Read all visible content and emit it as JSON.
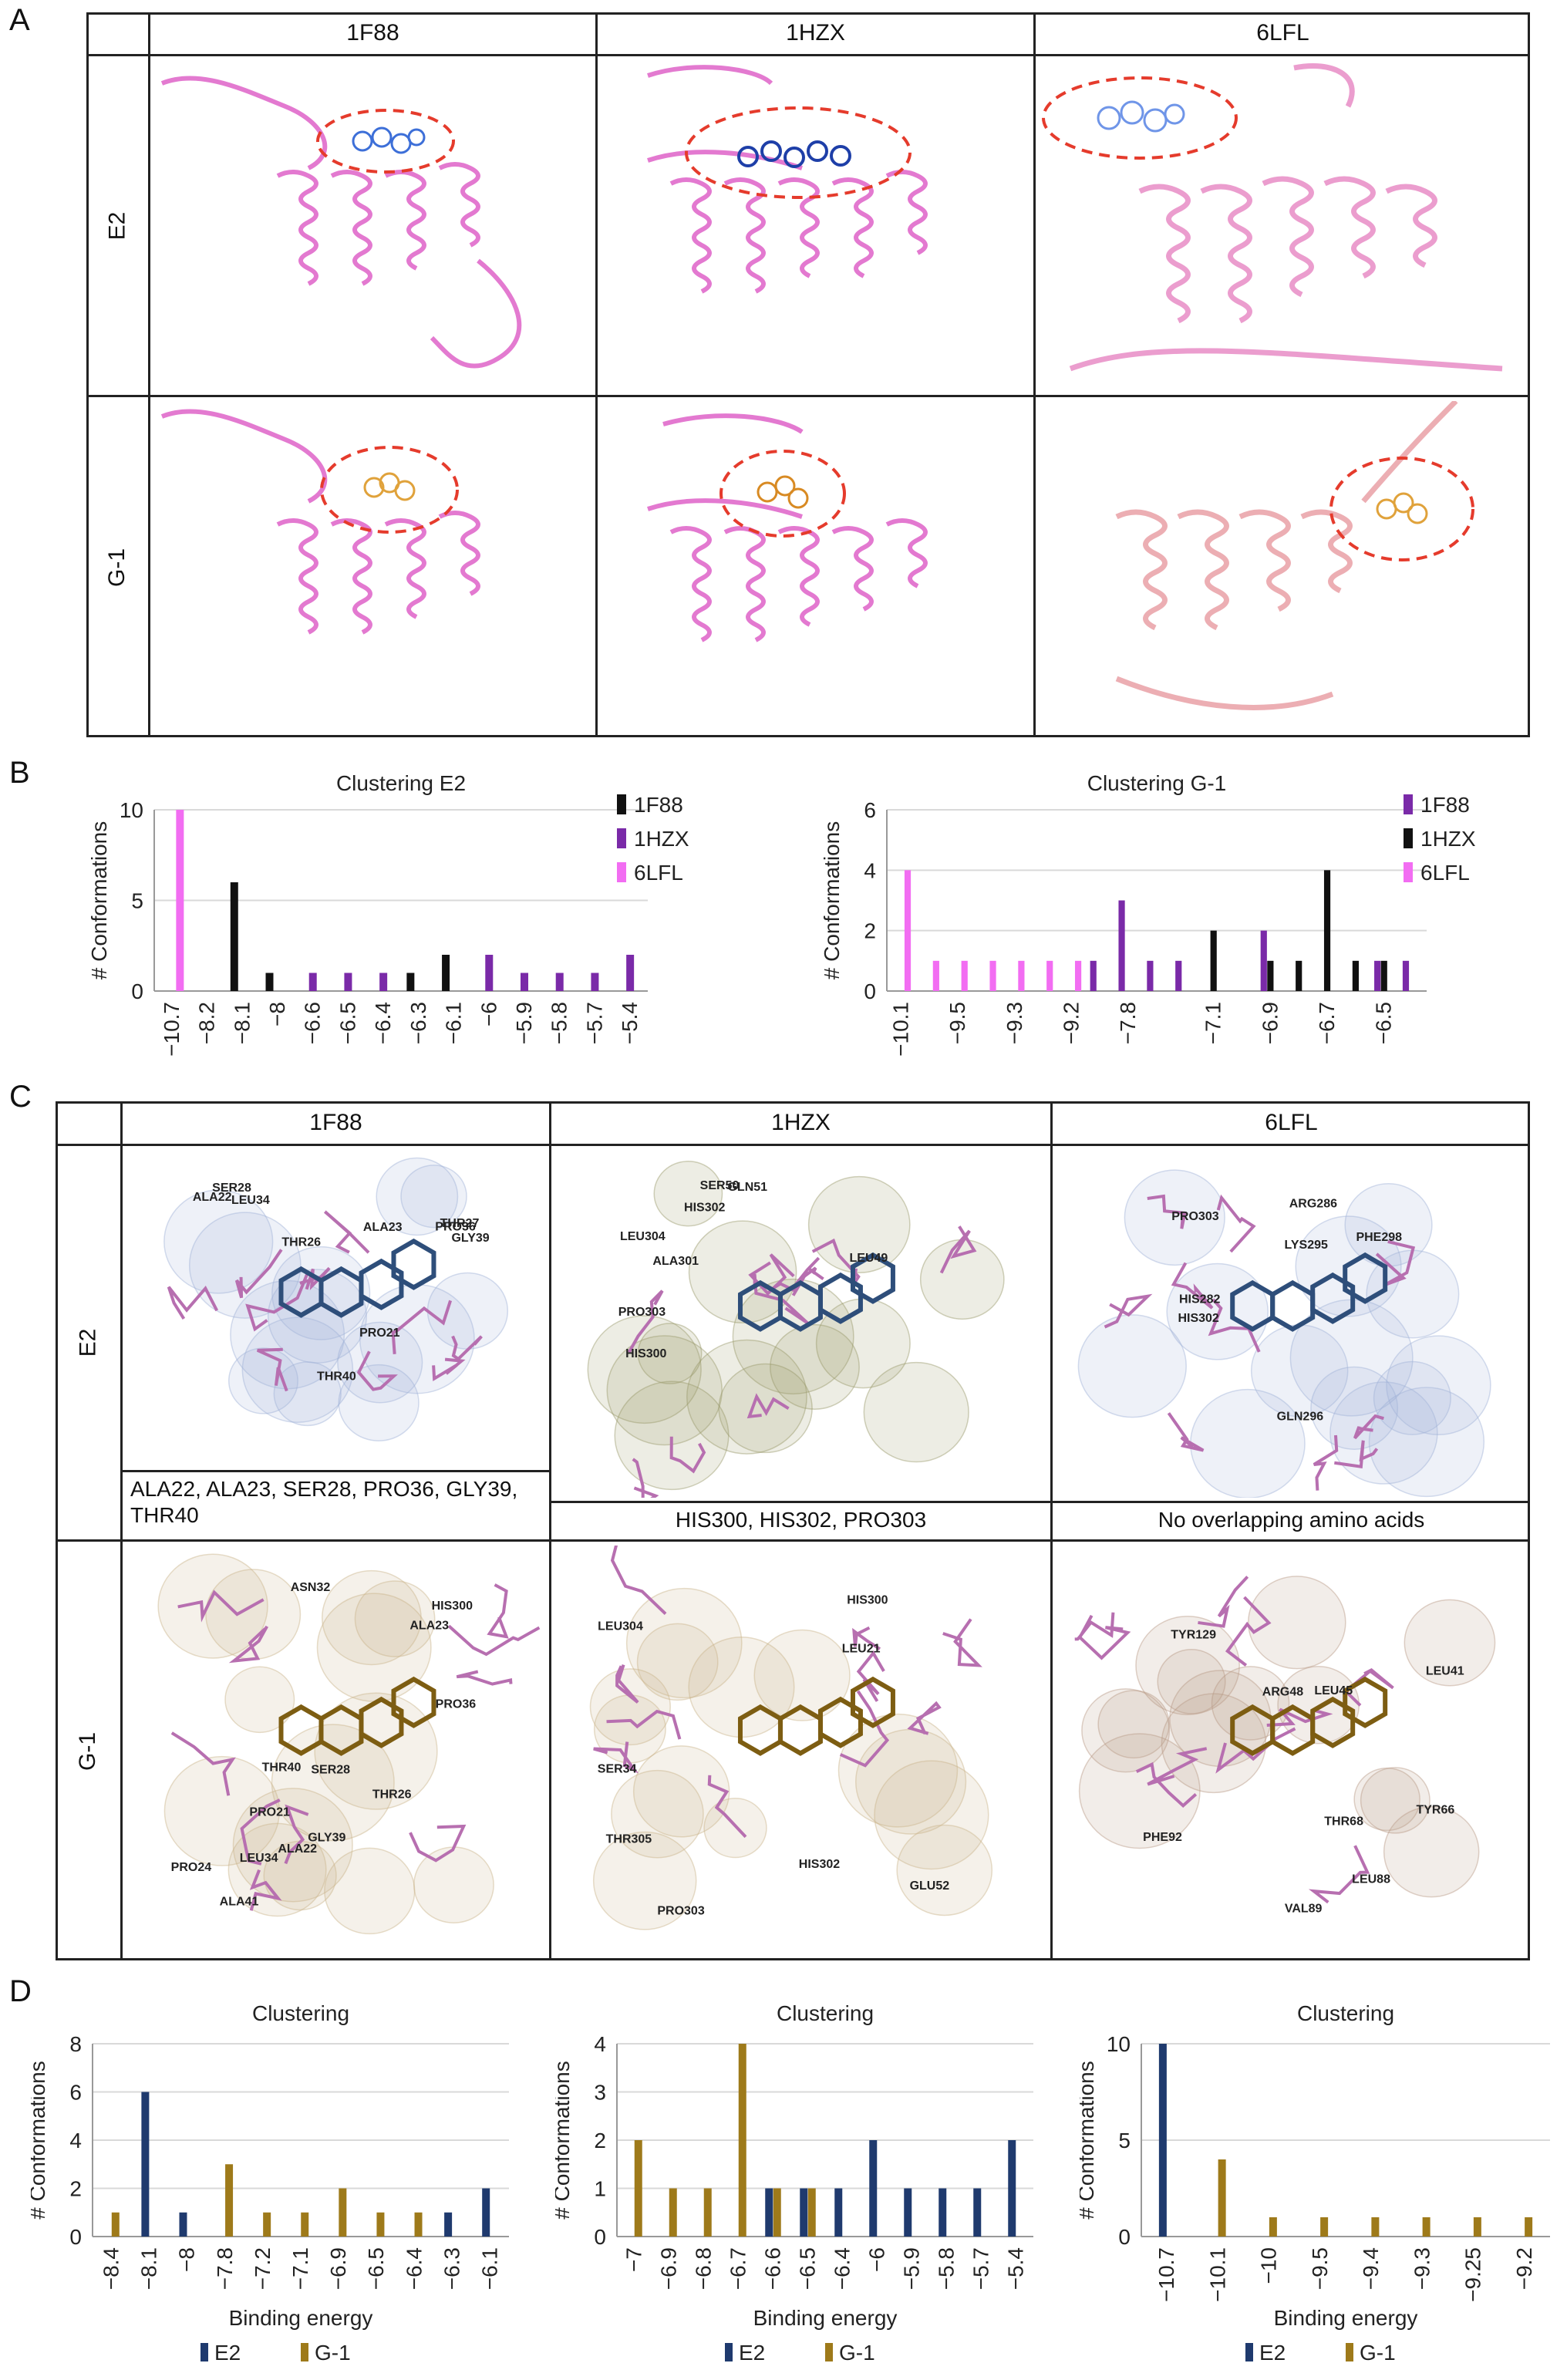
{
  "panels": {
    "A": {
      "letter": "A",
      "columns": [
        "1F88",
        "1HZX",
        "6LFL"
      ],
      "rows": [
        "E2",
        "G-1"
      ]
    },
    "B": {
      "letter": "B"
    },
    "C": {
      "letter": "C",
      "columns": [
        "1F88",
        "1HZX",
        "6LFL"
      ],
      "rows": [
        "E2",
        "G-1"
      ],
      "overlap_captions": [
        "ALA22, ALA23, SER28, PRO36, GLY39, THR40",
        "HIS300, HIS302, PRO303",
        "No overlapping amino acids"
      ],
      "residue_labels_e2": [
        [
          "ALA22",
          "ALA23",
          "THR40",
          "THR26",
          "THR27",
          "PRO21",
          "PRO36",
          "SER28",
          "LEU34",
          "GLY39"
        ],
        [
          "HIS300",
          "LEU49",
          "GLN51",
          "HIS302",
          "PRO303",
          "ALA301",
          "SER50",
          "LEU304"
        ],
        [
          "LYS295",
          "PHE298",
          "GLN296",
          "ARG286",
          "PRO303",
          "HIS282",
          "HIS302"
        ]
      ],
      "residue_labels_g1": [
        [
          "PRO24",
          "ALA23",
          "THR26",
          "HIS300",
          "ALA22",
          "THR40",
          "ALA41",
          "SER28",
          "PRO21",
          "LEU34",
          "GLY39",
          "PRO36",
          "ASN32"
        ],
        [
          "SER34",
          "GLU52",
          "PRO303",
          "LEU21",
          "HIS302",
          "LEU304",
          "HIS300",
          "THR305"
        ],
        [
          "LEU41",
          "TYR66",
          "LEU45",
          "ARG48",
          "LEU88",
          "THR68",
          "TYR129",
          "VAL89",
          "PHE92"
        ]
      ]
    },
    "D": {
      "letter": "D"
    }
  },
  "colors": {
    "e2_ligand": "#2e4e7a",
    "g1_ligand": "#7d5d12",
    "protein_ribbon": "#e06bcb",
    "residue_stick": "#b76fb0",
    "dashed_circle": "#e53b2c",
    "black_series": "#111111",
    "purple_series": "#7a2aa8",
    "pink_series": "#f26df2",
    "navy_series": "#1f3a6e",
    "gold_series": "#9e7a1a"
  },
  "chart_data": [
    {
      "id": "B-left",
      "type": "bar",
      "title": "Clustering E2",
      "xlabel": "Binding energy",
      "ylabel": "# Conformations",
      "ylim": [
        0,
        10
      ],
      "yticks": [
        0,
        5,
        10
      ],
      "categories": [
        "−10.7",
        "−8.2",
        "−8.1",
        "−8",
        "−6.6",
        "−6.5",
        "−6.4",
        "−6.3",
        "−6.1",
        "−6",
        "−5.9",
        "−5.8",
        "−5.7",
        "−5.4"
      ],
      "series": [
        {
          "name": "1F88",
          "color": "#111111",
          "values": [
            0,
            0,
            6,
            1,
            0,
            0,
            0,
            1,
            2,
            0,
            0,
            0,
            0,
            0
          ]
        },
        {
          "name": "1HZX",
          "color": "#7a2aa8",
          "values": [
            0,
            0,
            0,
            0,
            1,
            1,
            1,
            0,
            0,
            2,
            1,
            1,
            1,
            2
          ]
        },
        {
          "name": "6LFL",
          "color": "#f26df2",
          "values": [
            10,
            0,
            0,
            0,
            0,
            0,
            0,
            0,
            0,
            0,
            0,
            0,
            0,
            0
          ]
        }
      ],
      "legend": "right"
    },
    {
      "id": "B-right",
      "type": "bar",
      "title": "Clustering G-1",
      "xlabel": "Binding energy",
      "ylabel": "# Conformations",
      "ylim": [
        0,
        6
      ],
      "yticks": [
        0,
        2,
        4,
        6
      ],
      "categories": [
        "−10.1",
        "−9.6",
        "−9.5",
        "−9.4",
        "−9.3",
        "−9.25",
        "−9.2",
        "−7.9",
        "−7.8",
        "−7.6",
        "−7.2",
        "−7.1",
        "−7",
        "−6.9",
        "−6.8",
        "−6.7",
        "−6.6",
        "−6.5",
        "−6.4"
      ],
      "xtick_labels_shown": [
        "−10.1",
        "",
        "−9.5",
        "",
        "−9.3",
        "",
        "−9.2",
        "",
        "−7.8",
        "",
        "",
        "−7.1",
        "",
        "−6.9",
        "",
        "−6.7",
        "",
        "−6.5",
        ""
      ],
      "series": [
        {
          "name": "1F88",
          "color": "#7a2aa8",
          "values": [
            0,
            0,
            0,
            0,
            0,
            0,
            0,
            1,
            3,
            1,
            1,
            0,
            0,
            2,
            0,
            0,
            0,
            1,
            1
          ]
        },
        {
          "name": "1HZX",
          "color": "#111111",
          "values": [
            0,
            0,
            0,
            0,
            0,
            0,
            0,
            0,
            0,
            0,
            0,
            2,
            0,
            1,
            1,
            4,
            1,
            1,
            0
          ]
        },
        {
          "name": "6LFL",
          "color": "#f26df2",
          "values": [
            4,
            1,
            1,
            1,
            1,
            1,
            1,
            0,
            0,
            0,
            0,
            0,
            0,
            0,
            0,
            0,
            0,
            0,
            0
          ]
        }
      ],
      "legend": "right"
    },
    {
      "id": "D-left",
      "type": "bar",
      "title": "Clustering",
      "xlabel": "Binding energy",
      "ylabel": "# Conformations",
      "ylim": [
        0,
        8
      ],
      "yticks": [
        0,
        2,
        4,
        6,
        8
      ],
      "categories": [
        "−8.4",
        "−8.1",
        "−8",
        "−7.8",
        "−7.2",
        "−7.1",
        "−6.9",
        "−6.5",
        "−6.4",
        "−6.3",
        "−6.1"
      ],
      "series": [
        {
          "name": "E2",
          "color": "#1f3a6e",
          "values": [
            0,
            6,
            1,
            0,
            0,
            0,
            0,
            0,
            0,
            1,
            2
          ]
        },
        {
          "name": "G-1",
          "color": "#9e7a1a",
          "values": [
            1,
            0,
            0,
            3,
            1,
            1,
            2,
            1,
            1,
            0,
            0
          ]
        }
      ],
      "legend": "bottom"
    },
    {
      "id": "D-middle",
      "type": "bar",
      "title": "Clustering",
      "xlabel": "Binding energy",
      "ylabel": "# Conformations",
      "ylim": [
        0,
        4
      ],
      "yticks": [
        0,
        1,
        2,
        3,
        4
      ],
      "categories": [
        "−7",
        "−6.9",
        "−6.8",
        "−6.7",
        "−6.6",
        "−6.5",
        "−6.4",
        "−6",
        "−5.9",
        "−5.8",
        "−5.7",
        "−5.4"
      ],
      "series": [
        {
          "name": "E2",
          "color": "#1f3a6e",
          "values": [
            0,
            0,
            0,
            0,
            1,
            1,
            1,
            2,
            1,
            1,
            1,
            2
          ]
        },
        {
          "name": "G-1",
          "color": "#9e7a1a",
          "values": [
            2,
            1,
            1,
            4,
            1,
            1,
            0,
            0,
            0,
            0,
            0,
            0
          ]
        }
      ],
      "legend": "bottom"
    },
    {
      "id": "D-right",
      "type": "bar",
      "title": "Clustering",
      "xlabel": "Binding energy",
      "ylabel": "# Conformations",
      "ylim": [
        0,
        10
      ],
      "yticks": [
        0,
        5,
        10
      ],
      "categories": [
        "−10.7",
        "−10.1",
        "−10",
        "−9.5",
        "−9.4",
        "−9.3",
        "−9.25",
        "−9.2"
      ],
      "series": [
        {
          "name": "E2",
          "color": "#1f3a6e",
          "values": [
            10,
            0,
            0,
            0,
            0,
            0,
            0,
            0
          ]
        },
        {
          "name": "G-1",
          "color": "#9e7a1a",
          "values": [
            0,
            4,
            1,
            1,
            1,
            1,
            1,
            1
          ]
        }
      ],
      "legend": "bottom"
    }
  ]
}
